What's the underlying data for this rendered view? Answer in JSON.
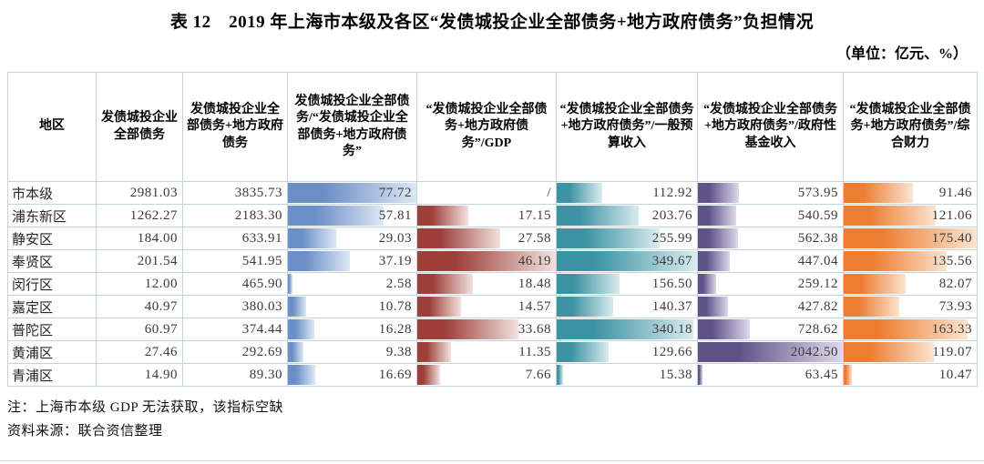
{
  "title": "表 12　2019 年上海市本级及各区“发债城投企业全部债务+地方政府债务”负担情况",
  "unit_note": "（单位：亿元、%）",
  "notes": [
    "注：上海市本级 GDP 无法获取，该指标空缺",
    "资料来源：联合资信整理"
  ],
  "table": {
    "region_header": "地区",
    "columns": [
      {
        "label": "发债城投企业全部债务",
        "bar_color": null,
        "bar_light": null
      },
      {
        "label": "发债城投企业全部债务+地方政府债务",
        "bar_color": null,
        "bar_light": null
      },
      {
        "label": "发债城投企业全部债务/“发债城投企业全部债务+地方政府债务”",
        "bar_color": "#6a8ec6",
        "bar_light": "#dde8f5"
      },
      {
        "label": "“发债城投企业全部债务+地方政府债务”/GDP",
        "bar_color": "#9e3f3a",
        "bar_light": "#f2e2df"
      },
      {
        "label": "“发债城投企业全部债务+地方政府债务”/一般预算收入",
        "bar_color": "#3d93a4",
        "bar_light": "#d9ebee"
      },
      {
        "label": "“发债城投企业全部债务+地方政府债务”/政府性基金收入",
        "bar_color": "#5f5289",
        "bar_light": "#ded9ea"
      },
      {
        "label": "“发债城投企业全部债务+地方政府债务”/综合财力",
        "bar_color": "#ed7d31",
        "bar_light": "#fbe4d0"
      }
    ],
    "rows": [
      {
        "region": "市本级",
        "values": [
          "2981.03",
          "3835.73",
          "77.72",
          "/",
          "112.92",
          "573.95",
          "91.46"
        ]
      },
      {
        "region": "浦东新区",
        "values": [
          "1262.27",
          "2183.30",
          "57.81",
          "17.15",
          "203.76",
          "540.59",
          "121.06"
        ]
      },
      {
        "region": "静安区",
        "values": [
          "184.00",
          "633.91",
          "29.03",
          "27.58",
          "255.99",
          "562.38",
          "175.40"
        ]
      },
      {
        "region": "奉贤区",
        "values": [
          "201.54",
          "541.95",
          "37.19",
          "46.19",
          "349.67",
          "447.04",
          "135.56"
        ]
      },
      {
        "region": "闵行区",
        "values": [
          "12.00",
          "465.90",
          "2.58",
          "18.48",
          "156.50",
          "259.12",
          "82.07"
        ]
      },
      {
        "region": "嘉定区",
        "values": [
          "40.97",
          "380.03",
          "10.78",
          "14.57",
          "140.37",
          "427.82",
          "73.93"
        ]
      },
      {
        "region": "普陀区",
        "values": [
          "60.97",
          "374.44",
          "16.28",
          "33.68",
          "340.18",
          "728.62",
          "163.33"
        ]
      },
      {
        "region": "黄浦区",
        "values": [
          "27.46",
          "292.69",
          "9.38",
          "11.35",
          "129.66",
          "2042.50",
          "119.07"
        ]
      },
      {
        "region": "青浦区",
        "values": [
          "14.90",
          "89.30",
          "16.69",
          "7.66",
          "15.38",
          "63.45",
          "10.47"
        ]
      }
    ]
  }
}
